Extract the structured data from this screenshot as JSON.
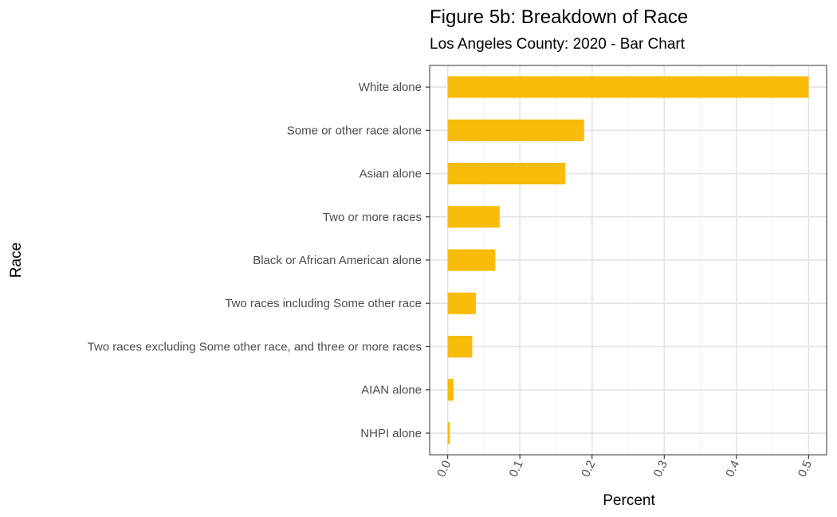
{
  "chart_data": {
    "type": "bar",
    "orientation": "horizontal",
    "title": "Figure 5b: Breakdown of Race",
    "subtitle": "Los Angeles County: 2020 - Bar Chart",
    "xlabel": "Percent",
    "ylabel": "Race",
    "xlim": [
      -0.025,
      0.525
    ],
    "xticks": [
      "0.0",
      "0.1",
      "0.2",
      "0.3",
      "0.4",
      "0.5"
    ],
    "categories": [
      "White alone",
      "Some or other race alone",
      "Asian alone",
      "Two or more races",
      "Black or African American alone",
      "Two races including Some other race",
      "Two races excluding Some other race, and three or more races",
      "AIAN alone",
      "NHPI alone"
    ],
    "values": [
      0.5,
      0.189,
      0.163,
      0.072,
      0.066,
      0.039,
      0.034,
      0.008,
      0.003
    ],
    "bar_color": "#F9BC0A",
    "grid": true
  }
}
